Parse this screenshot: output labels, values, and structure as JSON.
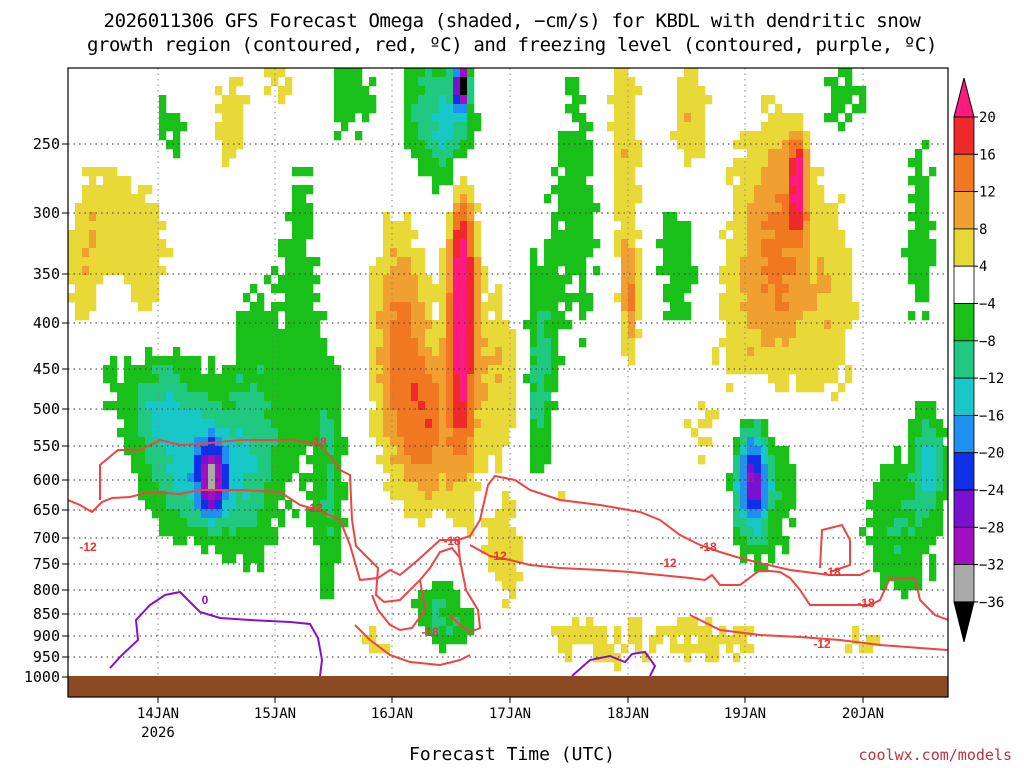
{
  "title": {
    "line1": "2026011306 GFS Forecast Omega (shaded, −cm/s) for KBDL with dendritic snow",
    "line2": "growth region (contoured, red, ºC) and freezing level (contoured, purple, ºC)"
  },
  "xaxis_title": "Forecast Time (UTC)",
  "credit": "coolwx.com/models",
  "colors": {
    "ground": "#8b4a22",
    "dgz_contour": "#ee4444",
    "freezing_contour": "#8a10c8"
  },
  "chart_data": {
    "type": "heatmap",
    "title": "2026011306 GFS Forecast Omega (shaded, −cm/s) for KBDL with dendritic snow growth region (contoured, red, ºC) and freezing level (contoured, purple, ºC)",
    "xlabel": "Forecast Time (UTC)",
    "ylabel": "",
    "y_scale": "pressure (hPa), inverted",
    "ylim": [
      1010,
      200
    ],
    "xlim_days": [
      "2026-01-13 06",
      "2026-01-20 18"
    ],
    "grid": true,
    "y_ticks": [
      250,
      300,
      350,
      400,
      450,
      500,
      550,
      600,
      650,
      700,
      750,
      800,
      850,
      900,
      950,
      1000
    ],
    "x_ticks": [
      {
        "label": "14JAN",
        "sublabel": "2026",
        "date": "2026-01-14 00"
      },
      {
        "label": "15JAN",
        "sublabel": "",
        "date": "2026-01-15 00"
      },
      {
        "label": "16JAN",
        "sublabel": "",
        "date": "2026-01-16 00"
      },
      {
        "label": "17JAN",
        "sublabel": "",
        "date": "2026-01-17 00"
      },
      {
        "label": "18JAN",
        "sublabel": "",
        "date": "2026-01-18 00"
      },
      {
        "label": "19JAN",
        "sublabel": "",
        "date": "2026-01-19 00"
      },
      {
        "label": "20JAN",
        "sublabel": "",
        "date": "2026-01-20 00"
      }
    ],
    "colorbar": {
      "labels": [
        "20",
        "16",
        "12",
        "8",
        "4",
        "−4",
        "−8",
        "−12",
        "−16",
        "−20",
        "−24",
        "−28",
        "−32",
        "−36"
      ],
      "colors": [
        "#ff1a80",
        "#ee2a2a",
        "#f07820",
        "#f0a030",
        "#e8d838",
        "#ffffff",
        "#19c019",
        "#20c880",
        "#18c8c8",
        "#2090f0",
        "#1030e8",
        "#7a10d0",
        "#a010c0",
        "#aaaaaa",
        "#000000"
      ]
    },
    "omega_features": [
      {
        "time": "2026-01-14 12",
        "p_top": 480,
        "p_bottom": 700,
        "value": -20
      },
      {
        "time": "2026-01-16 06",
        "p_top": 300,
        "p_bottom": 550,
        "value": 12
      },
      {
        "time": "2026-01-16 14",
        "p_top": 200,
        "p_bottom": 560,
        "value": 20
      },
      {
        "time": "2026-01-16 14",
        "p_top": 200,
        "p_bottom": 230,
        "value": -36
      },
      {
        "time": "2026-01-19 00",
        "p_top": 570,
        "p_bottom": 650,
        "value": -20
      },
      {
        "time": "2026-01-19 12",
        "p_top": 230,
        "p_bottom": 320,
        "value": 16
      }
    ],
    "contour_labels": [
      {
        "text": "-12",
        "color": "red",
        "time": "2026-01-13 08",
        "p": 712
      },
      {
        "text": "-18",
        "color": "red",
        "time": "2026-01-15 12",
        "p": 540
      },
      {
        "text": "-12",
        "color": "red",
        "time": "2026-01-15 12",
        "p": 655
      },
      {
        "text": "-18",
        "color": "red",
        "time": "2026-01-16 12",
        "p": 702
      },
      {
        "text": "-12",
        "color": "red",
        "time": "2026-01-17 00",
        "p": 733
      },
      {
        "text": "-18",
        "color": "red",
        "time": "2026-01-16 06",
        "p": 892
      },
      {
        "text": "-12",
        "color": "red",
        "time": "2026-01-18 09",
        "p": 767
      },
      {
        "text": "-18",
        "color": "red",
        "time": "2026-01-18 18",
        "p": 725
      },
      {
        "text": "-18",
        "color": "red",
        "time": "2026-01-19 18",
        "p": 783
      },
      {
        "text": "-18",
        "color": "red",
        "time": "2026-01-20 00",
        "p": 853
      },
      {
        "text": "-12",
        "color": "red",
        "time": "2026-01-19 15",
        "p": 945
      },
      {
        "text": "0",
        "color": "purple",
        "time": "2026-01-14 12",
        "p": 845
      }
    ]
  }
}
